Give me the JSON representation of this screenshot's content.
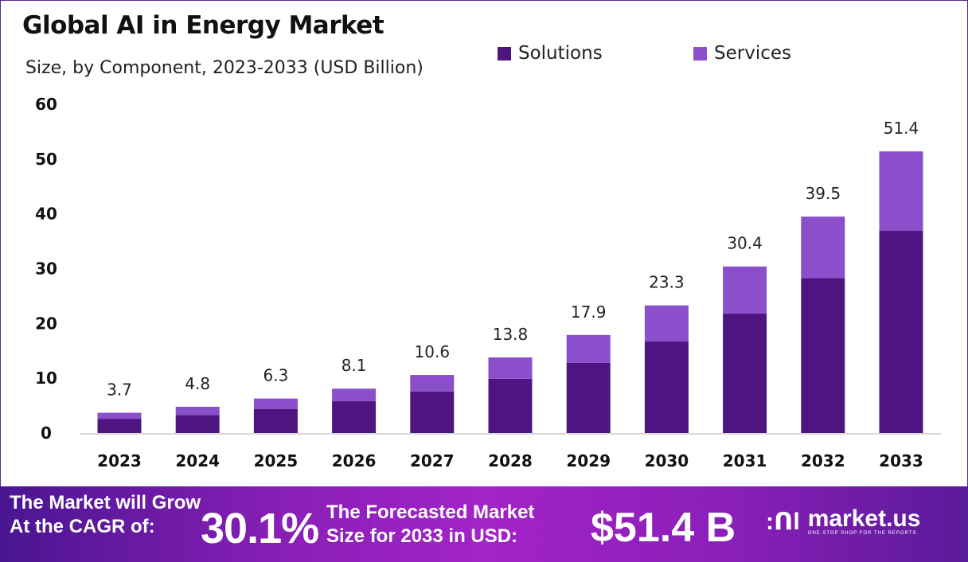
{
  "chart_data": {
    "type": "bar",
    "stacked": true,
    "title": "Global AI in Energy Market",
    "subtitle": "Size, by Component, 2023-2033 (USD Billion)",
    "xlabel": "",
    "ylabel": "",
    "ylim": [
      0,
      60
    ],
    "yticks": [
      0,
      10,
      20,
      30,
      40,
      50,
      60
    ],
    "grid": false,
    "legend_position": "top-right",
    "categories": [
      "2023",
      "2024",
      "2025",
      "2026",
      "2027",
      "2028",
      "2029",
      "2030",
      "2031",
      "2032",
      "2033"
    ],
    "totals": [
      "3.7",
      "4.8",
      "6.3",
      "8.1",
      "10.6",
      "13.8",
      "17.9",
      "23.3",
      "30.4",
      "39.5",
      "51.4"
    ],
    "series": [
      {
        "name": "Solutions",
        "color": "#4e1580",
        "values": [
          2.6,
          3.3,
          4.4,
          5.8,
          7.6,
          9.9,
          12.8,
          16.7,
          21.8,
          28.3,
          36.9
        ]
      },
      {
        "name": "Services",
        "color": "#8b4fcc",
        "values": [
          1.1,
          1.5,
          1.9,
          2.3,
          3.0,
          3.9,
          5.1,
          6.6,
          8.6,
          11.2,
          14.5
        ]
      }
    ]
  },
  "footer": {
    "cagr_label_1": "The Market will Grow",
    "cagr_label_2": "At the CAGR of:",
    "cagr_value": "30.1%",
    "forecast_label_1": "The Forecasted Market",
    "forecast_label_2": "Size for 2033 in USD:",
    "forecast_value": "$51.4 B",
    "logo_name": "market.us",
    "logo_tagline": "ONE STOP SHOP FOR THE REPORTS"
  }
}
